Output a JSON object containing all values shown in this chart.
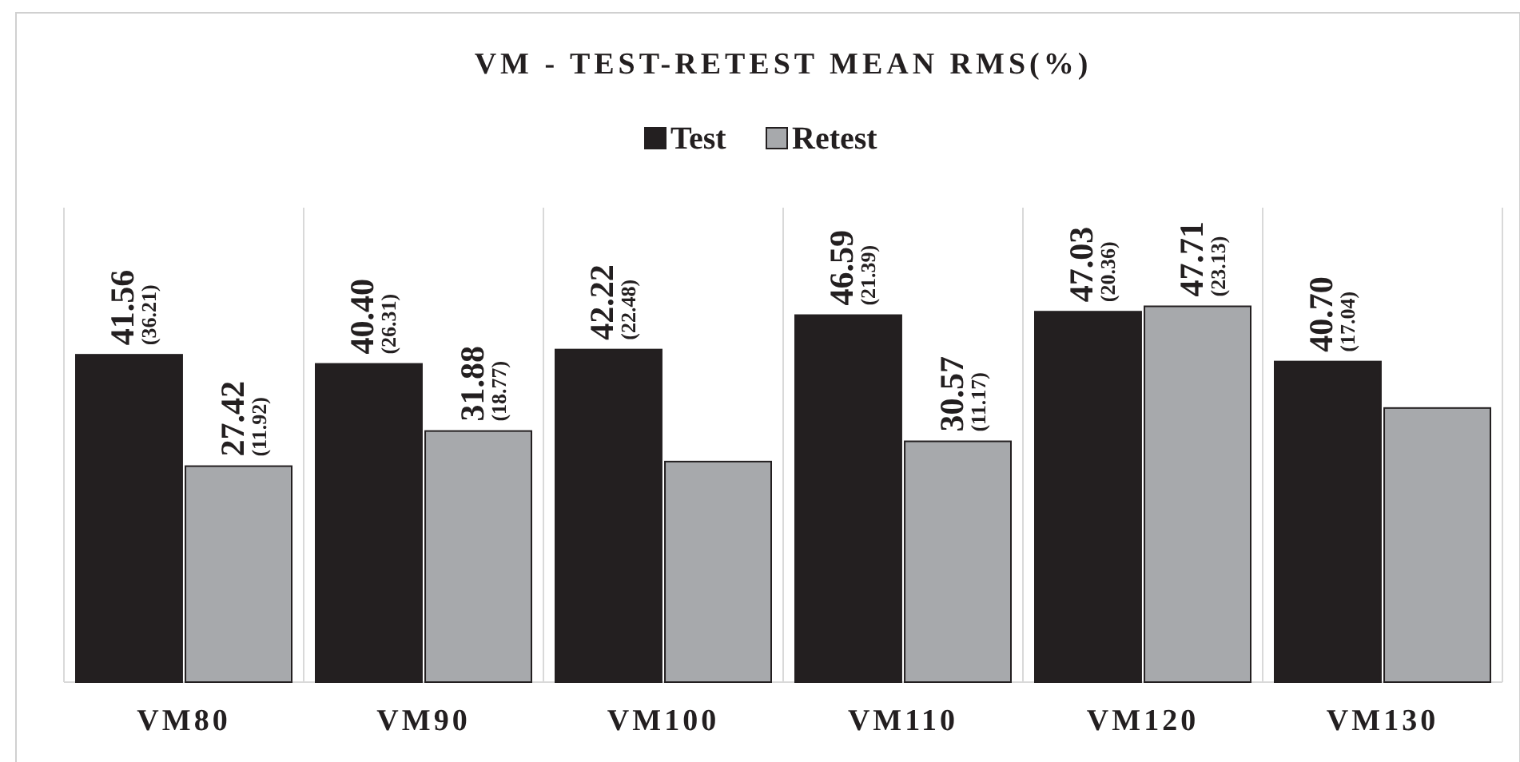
{
  "chart_data": {
    "type": "bar",
    "title": "VM - TEST-RETEST MEAN RMS(%)",
    "categories": [
      "VM80",
      "VM90",
      "VM100",
      "VM110",
      "VM120",
      "VM130"
    ],
    "series": [
      {
        "name": "Test",
        "color": "#231f20",
        "values": [
          41.56,
          40.4,
          42.22,
          46.59,
          47.03,
          40.7
        ],
        "value_labels": [
          "41.56 (36.21)",
          "40.40 (26.31)",
          "42.22 (22.48)",
          "46.59 (21.39)",
          "47.03 (20.36)",
          "40.70 (17.04)"
        ]
      },
      {
        "name": "Retest",
        "color": "#a7a9ac",
        "values": [
          27.42,
          31.88,
          28.0,
          30.57,
          47.71,
          34.8
        ],
        "value_labels": [
          "27.42 (11.92)",
          "31.88 (18.77)",
          null,
          "30.57 (11.17)",
          "47.71 (23.13)",
          null
        ]
      }
    ],
    "legend": "top",
    "grid": "x"
  }
}
